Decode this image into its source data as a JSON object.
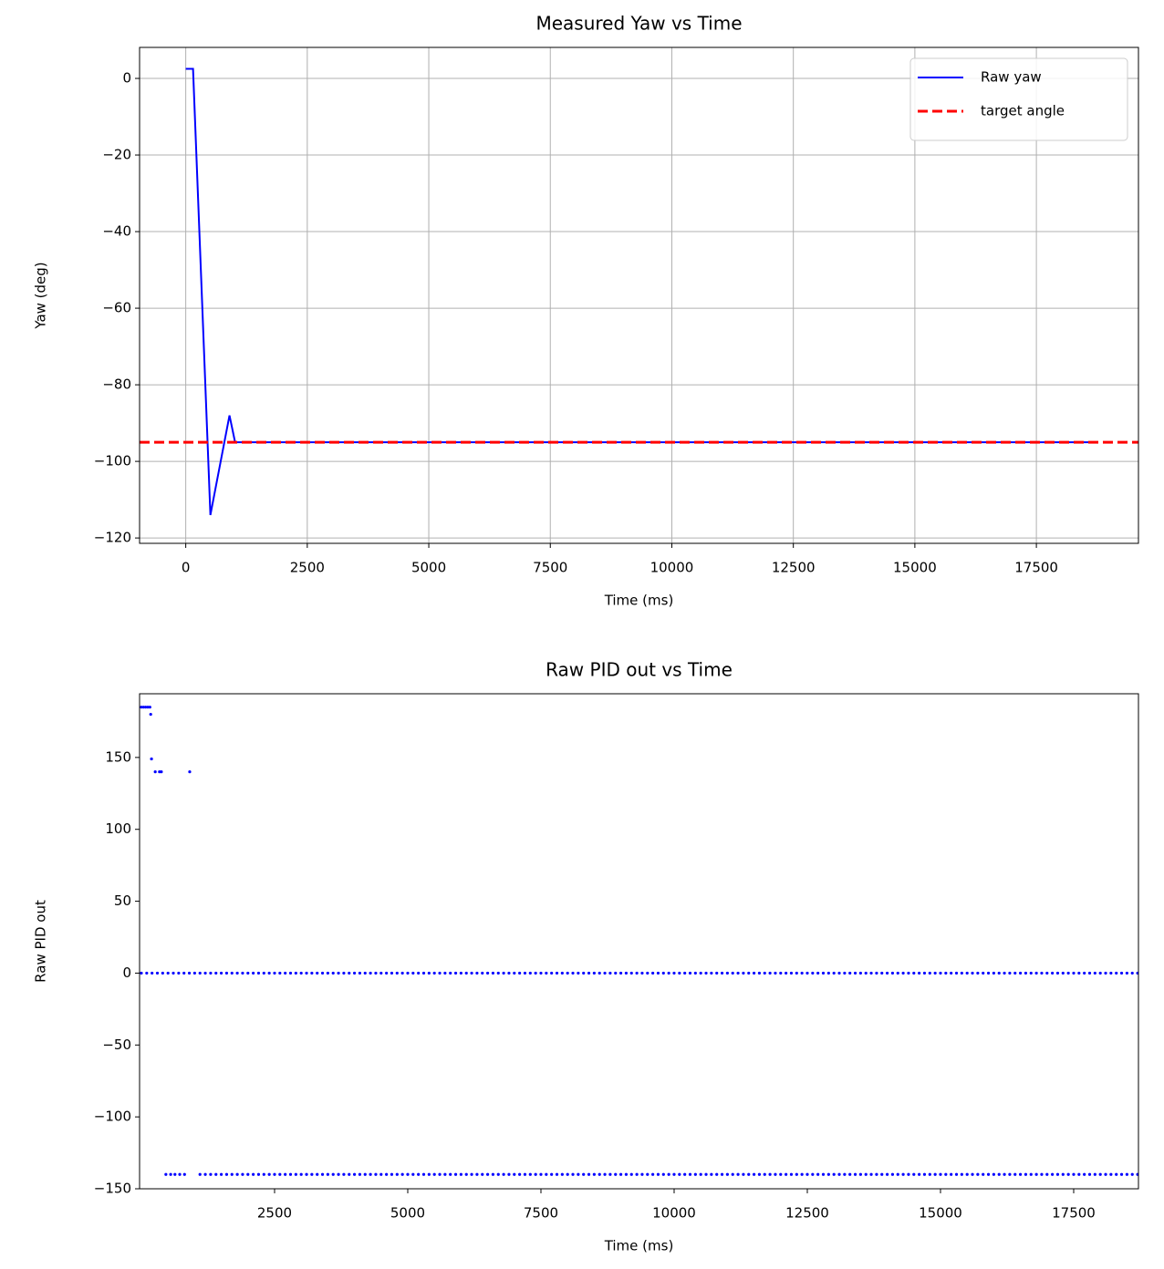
{
  "chart_data": [
    {
      "type": "line",
      "title": "Measured Yaw vs Time",
      "xlabel": "Time (ms)",
      "ylabel": "Yaw (deg)",
      "x": [
        0,
        150,
        507,
        900,
        1015,
        18650
      ],
      "series": [
        {
          "name": "Raw yaw",
          "color": "#0000ff",
          "values": [
            2.5,
            2.5,
            -114,
            -88,
            -95,
            -95
          ]
        }
      ],
      "hline": {
        "name": "target angle",
        "value": -95,
        "color": "#ff0000",
        "style": "dashed"
      },
      "xlim": [
        -950,
        19600
      ],
      "ylim": [
        -121.4,
        8.1
      ],
      "xticks": [
        0,
        2500,
        5000,
        7500,
        10000,
        12500,
        15000,
        17500
      ],
      "yticks": [
        0,
        {
          "value": -20,
          "label": "−20"
        },
        {
          "value": -40,
          "label": "−40"
        },
        {
          "value": -60,
          "label": "−60"
        },
        {
          "value": -80,
          "label": "−80"
        },
        {
          "value": -100,
          "label": "−100"
        },
        {
          "value": -120,
          "label": "−120"
        }
      ],
      "grid": true,
      "legend": "upper right"
    },
    {
      "type": "scatter",
      "title": "Raw PID out vs Time",
      "xlabel": "Time (ms)",
      "ylabel": "Raw PID out",
      "color": "#0000ff",
      "x": [
        0,
        40,
        80,
        120,
        160,
        175,
        190,
        260,
        340,
        375,
        907,
        460,
        550,
        630,
        720,
        810,
        0,
        100,
        200,
        300,
        400,
        500,
        600,
        700,
        800,
        900,
        1000,
        1100,
        1200,
        1300,
        1400,
        1500,
        1600,
        1700,
        1800,
        1900,
        2000,
        2100,
        2200,
        2300,
        2400,
        2500,
        2600,
        2700,
        2800,
        2900,
        3000,
        3100,
        3200,
        3300,
        3400,
        3500,
        3600,
        3700,
        3800,
        3900,
        4000,
        4100,
        4200,
        4300,
        4400,
        4500,
        4600,
        4700,
        4800,
        4900,
        5000,
        5100,
        5200,
        5300,
        5400,
        5500,
        5600,
        5700,
        5800,
        5900,
        6000,
        6100,
        6200,
        6300,
        6400,
        6500,
        6600,
        6700,
        6800,
        6900,
        7000,
        7100,
        7200,
        7300,
        7400,
        7500,
        7600,
        7700,
        7800,
        7900,
        8000,
        8100,
        8200,
        8300,
        8400,
        8500,
        8600,
        8700,
        8800,
        8900,
        9000,
        9100,
        9200,
        9300,
        9400,
        9500,
        9600,
        9700,
        9800,
        9900,
        10000,
        10100,
        10200,
        10300,
        10400,
        10500,
        10600,
        10700,
        10800,
        10900,
        11000,
        11100,
        11200,
        11300,
        11400,
        11500,
        11600,
        11700,
        11800,
        11900,
        12000,
        12100,
        12200,
        12300,
        12400,
        12500,
        12600,
        12700,
        12800,
        12900,
        13000,
        13100,
        13200,
        13300,
        13400,
        13500,
        13600,
        13700,
        13800,
        13900,
        14000,
        14100,
        14200,
        14300,
        14400,
        14500,
        14600,
        14700,
        14800,
        14900,
        15000,
        15100,
        15200,
        15300,
        15400,
        15500,
        15600,
        15700,
        15800,
        15900,
        16000,
        16100,
        16200,
        16300,
        16400,
        16500,
        16600,
        16700,
        16800,
        16900,
        17000,
        17100,
        17200,
        17300,
        17400,
        17500,
        17600,
        17700,
        17800,
        17900,
        18000,
        18100,
        18200,
        18300,
        18400,
        18500,
        18600,
        18700,
        1100,
        1200,
        1300,
        1400,
        1500,
        1600,
        1700,
        1800,
        1900,
        2000,
        2100,
        2200,
        2300,
        2400,
        2500,
        2600,
        2700,
        2800,
        2900,
        3000,
        3100,
        3200,
        3300,
        3400,
        3500,
        3600,
        3700,
        3800,
        3900,
        4000,
        4100,
        4200,
        4300,
        4400,
        4500,
        4600,
        4700,
        4800,
        4900,
        5000,
        5100,
        5200,
        5300,
        5400,
        5500,
        5600,
        5700,
        5800,
        5900,
        6000,
        6100,
        6200,
        6300,
        6400,
        6500,
        6600,
        6700,
        6800,
        6900,
        7000,
        7100,
        7200,
        7300,
        7400,
        7500,
        7600,
        7700,
        7800,
        7900,
        8000,
        8100,
        8200,
        8300,
        8400,
        8500,
        8600,
        8700,
        8800,
        8900,
        9000,
        9100,
        9200,
        9300,
        9400,
        9500,
        9600,
        9700,
        9800,
        9900,
        10000,
        10100,
        10200,
        10300,
        10400,
        10500,
        10600,
        10700,
        10800,
        10900,
        11000,
        11100,
        11200,
        11300,
        11400,
        11500,
        11600,
        11700,
        11800,
        11900,
        12000,
        12100,
        12200,
        12300,
        12400,
        12500,
        12600,
        12700,
        12800,
        12900,
        13000,
        13100,
        13200,
        13300,
        13400,
        13500,
        13600,
        13700,
        13800,
        13900,
        14000,
        14100,
        14200,
        14300,
        14400,
        14500,
        14600,
        14700,
        14800,
        14900,
        15000,
        15100,
        15200,
        15300,
        15400,
        15500,
        15600,
        15700,
        15800,
        15900,
        16000,
        16100,
        16200,
        16300,
        16400,
        16500,
        16600,
        16700,
        16800,
        16900,
        17000,
        17100,
        17200,
        17300,
        17400,
        17500,
        17600,
        17700,
        17800,
        17900,
        18000,
        18100,
        18200,
        18300,
        18400,
        18500,
        18600,
        18700
      ],
      "values": [
        185,
        185,
        185,
        185,
        185,
        180,
        149,
        140,
        140,
        140,
        140,
        -140,
        -140,
        -140,
        -140,
        -140,
        0,
        0,
        0,
        0,
        0,
        0,
        0,
        0,
        0,
        0,
        0,
        0,
        0,
        0,
        0,
        0,
        0,
        0,
        0,
        0,
        0,
        0,
        0,
        0,
        0,
        0,
        0,
        0,
        0,
        0,
        0,
        0,
        0,
        0,
        0,
        0,
        0,
        0,
        0,
        0,
        0,
        0,
        0,
        0,
        0,
        0,
        0,
        0,
        0,
        0,
        0,
        0,
        0,
        0,
        0,
        0,
        0,
        0,
        0,
        0,
        0,
        0,
        0,
        0,
        0,
        0,
        0,
        0,
        0,
        0,
        0,
        0,
        0,
        0,
        0,
        0,
        0,
        0,
        0,
        0,
        0,
        0,
        0,
        0,
        0,
        0,
        0,
        0,
        0,
        0,
        0,
        0,
        0,
        0,
        0,
        0,
        0,
        0,
        0,
        0,
        0,
        0,
        0,
        0,
        0,
        0,
        0,
        0,
        0,
        0,
        0,
        0,
        0,
        0,
        0,
        0,
        0,
        0,
        0,
        0,
        0,
        0,
        0,
        0,
        0,
        0,
        0,
        0,
        0,
        0,
        0,
        0,
        0,
        0,
        0,
        0,
        0,
        0,
        0,
        0,
        0,
        0,
        0,
        0,
        0,
        0,
        0,
        0,
        0,
        0,
        0,
        0,
        0,
        0,
        0,
        0,
        0,
        0,
        0,
        0,
        0,
        0,
        0,
        0,
        0,
        0,
        0,
        0,
        0,
        0,
        0,
        0,
        0,
        0,
        0,
        0,
        0,
        0,
        0,
        0,
        0,
        0,
        0,
        0,
        0,
        0,
        0,
        0,
        -140,
        -140,
        -140,
        -140,
        -140,
        -140,
        -140,
        -140,
        -140,
        -140,
        -140,
        -140,
        -140,
        -140,
        -140,
        -140,
        -140,
        -140,
        -140,
        -140,
        -140,
        -140,
        -140,
        -140,
        -140,
        -140,
        -140,
        -140,
        -140,
        -140,
        -140,
        -140,
        -140,
        -140,
        -140,
        -140,
        -140,
        -140,
        -140,
        -140,
        -140,
        -140,
        -140,
        -140,
        -140,
        -140,
        -140,
        -140,
        -140,
        -140,
        -140,
        -140,
        -140,
        -140,
        -140,
        -140,
        -140,
        -140,
        -140,
        -140,
        -140,
        -140,
        -140,
        -140,
        -140,
        -140,
        -140,
        -140,
        -140,
        -140,
        -140,
        -140,
        -140,
        -140,
        -140,
        -140,
        -140,
        -140,
        -140,
        -140,
        -140,
        -140,
        -140,
        -140,
        -140,
        -140,
        -140,
        -140,
        -140,
        -140,
        -140,
        -140,
        -140,
        -140,
        -140,
        -140,
        -140,
        -140,
        -140,
        -140,
        -140,
        -140,
        -140,
        -140,
        -140,
        -140,
        -140,
        -140,
        -140,
        -140,
        -140,
        -140,
        -140,
        -140,
        -140,
        -140,
        -140,
        -140,
        -140,
        -140,
        -140,
        -140,
        -140,
        -140,
        -140,
        -140,
        -140,
        -140,
        -140,
        -140,
        -140,
        -140,
        -140,
        -140,
        -140,
        -140,
        -140,
        -140,
        -140,
        -140,
        -140,
        -140,
        -140,
        -140,
        -140,
        -140,
        -140,
        -140,
        -140,
        -140,
        -140,
        -140,
        -140,
        -140,
        -140,
        -140,
        -140,
        -140,
        -140,
        -140,
        -140,
        -140,
        -140,
        -140,
        -140,
        -140,
        -140,
        -140,
        -140,
        -140,
        -140,
        -140,
        -140,
        -140,
        -140,
        -140,
        -140
      ],
      "xlim": [
        -34,
        18716
      ],
      "ylim": [
        -150,
        194.3
      ],
      "xticks": [
        2500,
        5000,
        7500,
        10000,
        12500,
        15000,
        17500
      ],
      "yticks": [
        150,
        100,
        50,
        0,
        {
          "value": -50,
          "label": "−50"
        },
        {
          "value": -100,
          "label": "−100"
        },
        {
          "value": -150,
          "label": "−150"
        }
      ],
      "grid": false
    }
  ]
}
